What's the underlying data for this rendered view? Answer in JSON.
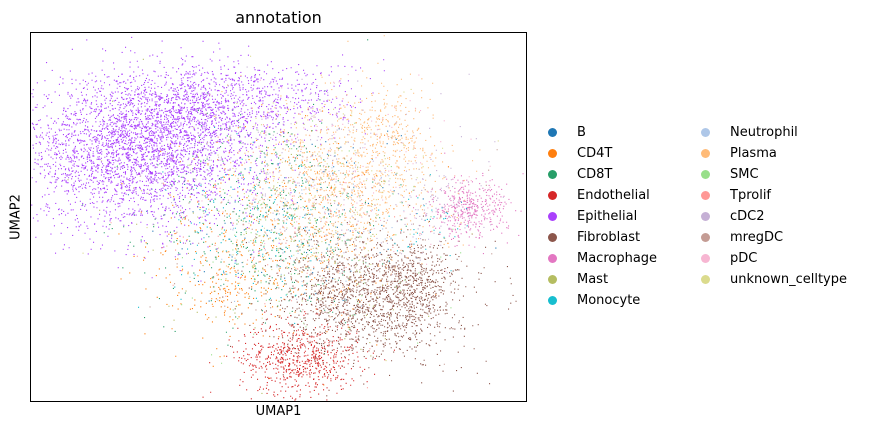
{
  "chart_data": {
    "type": "scatter",
    "title": "annotation",
    "xlabel": "UMAP1",
    "ylabel": "UMAP2",
    "xlim": [
      0,
      100
    ],
    "ylim": [
      0,
      100
    ],
    "xticks": [],
    "yticks": [],
    "grid": false,
    "legend_position": "right",
    "legend_columns": 2,
    "series": [
      {
        "name": "B",
        "color": "#1f77b4",
        "clusters": [
          {
            "cx": 52,
            "cy": 52,
            "sx": 15,
            "sy": 14,
            "n": 150
          }
        ]
      },
      {
        "name": "CD4T",
        "color": "#ff7f0e",
        "clusters": [
          {
            "cx": 48,
            "cy": 45,
            "sx": 12,
            "sy": 14,
            "n": 450
          },
          {
            "cx": 40,
            "cy": 30,
            "sx": 5,
            "sy": 4,
            "n": 120
          }
        ]
      },
      {
        "name": "CD8T",
        "color": "#279e68",
        "clusters": [
          {
            "cx": 48,
            "cy": 50,
            "sx": 12,
            "sy": 14,
            "n": 450
          }
        ]
      },
      {
        "name": "Endothelial",
        "color": "#d62728",
        "clusters": [
          {
            "cx": 54,
            "cy": 12,
            "sx": 6,
            "sy": 5,
            "n": 650
          }
        ]
      },
      {
        "name": "Epithelial",
        "color": "#aa40fc",
        "clusters": [
          {
            "cx": 22,
            "cy": 68,
            "sx": 12,
            "sy": 10,
            "n": 3200
          },
          {
            "cx": 33,
            "cy": 80,
            "sx": 9,
            "sy": 6,
            "n": 700
          },
          {
            "cx": 50,
            "cy": 82,
            "sx": 9,
            "sy": 5,
            "n": 350
          }
        ]
      },
      {
        "name": "Fibroblast",
        "color": "#8c564b",
        "clusters": [
          {
            "cx": 68,
            "cy": 28,
            "sx": 9,
            "sy": 8,
            "n": 1500
          },
          {
            "cx": 78,
            "cy": 33,
            "sx": 4,
            "sy": 5,
            "n": 300
          }
        ]
      },
      {
        "name": "Macrophage",
        "color": "#e377c2",
        "clusters": [
          {
            "cx": 88,
            "cy": 52,
            "sx": 4,
            "sy": 4,
            "n": 420
          }
        ]
      },
      {
        "name": "Mast",
        "color": "#b5bd61",
        "clusters": [
          {
            "cx": 55,
            "cy": 45,
            "sx": 15,
            "sy": 15,
            "n": 120
          }
        ]
      },
      {
        "name": "Monocyte",
        "color": "#17becf",
        "clusters": [
          {
            "cx": 45,
            "cy": 45,
            "sx": 8,
            "sy": 10,
            "n": 140
          },
          {
            "cx": 80,
            "cy": 48,
            "sx": 4,
            "sy": 5,
            "n": 40
          }
        ]
      },
      {
        "name": "Neutrophil",
        "color": "#aec7e8",
        "clusters": [
          {
            "cx": 55,
            "cy": 50,
            "sx": 12,
            "sy": 12,
            "n": 80
          }
        ]
      },
      {
        "name": "Plasma",
        "color": "#ffbb78",
        "clusters": [
          {
            "cx": 64,
            "cy": 60,
            "sx": 9,
            "sy": 12,
            "n": 900
          },
          {
            "cx": 73,
            "cy": 72,
            "sx": 4,
            "sy": 6,
            "n": 200
          }
        ]
      },
      {
        "name": "SMC",
        "color": "#98df8a",
        "clusters": [
          {
            "cx": 55,
            "cy": 44,
            "sx": 12,
            "sy": 14,
            "n": 140
          }
        ]
      },
      {
        "name": "Tprolif",
        "color": "#ff9896",
        "clusters": [
          {
            "cx": 52,
            "cy": 48,
            "sx": 12,
            "sy": 12,
            "n": 120
          }
        ]
      },
      {
        "name": "cDC2",
        "color": "#c5b0d5",
        "clusters": [
          {
            "cx": 58,
            "cy": 62,
            "sx": 14,
            "sy": 12,
            "n": 260
          },
          {
            "cx": 82,
            "cy": 52,
            "sx": 4,
            "sy": 5,
            "n": 80
          }
        ]
      },
      {
        "name": "mregDC",
        "color": "#c49c94",
        "clusters": [
          {
            "cx": 60,
            "cy": 40,
            "sx": 14,
            "sy": 12,
            "n": 180
          }
        ]
      },
      {
        "name": "pDC",
        "color": "#f7b6d2",
        "clusters": [
          {
            "cx": 62,
            "cy": 62,
            "sx": 12,
            "sy": 12,
            "n": 160
          }
        ]
      },
      {
        "name": "unknown_celltype",
        "color": "#dbdb8d",
        "clusters": [
          {
            "cx": 55,
            "cy": 55,
            "sx": 14,
            "sy": 14,
            "n": 200
          }
        ]
      }
    ]
  }
}
